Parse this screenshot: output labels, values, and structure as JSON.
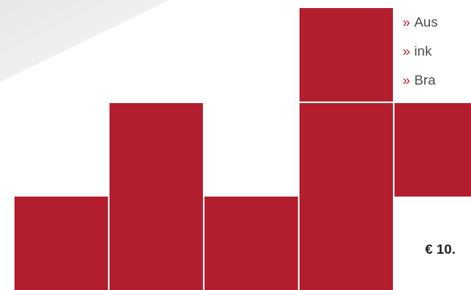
{
  "features": [
    {
      "arrow": "»",
      "text": "Aus"
    },
    {
      "arrow": "»",
      "text": "ink"
    },
    {
      "arrow": "»",
      "text": "Bra"
    }
  ],
  "price": "€ 10.",
  "colors": {
    "accent": "#b31e2e",
    "text": "#4a4a4a"
  }
}
